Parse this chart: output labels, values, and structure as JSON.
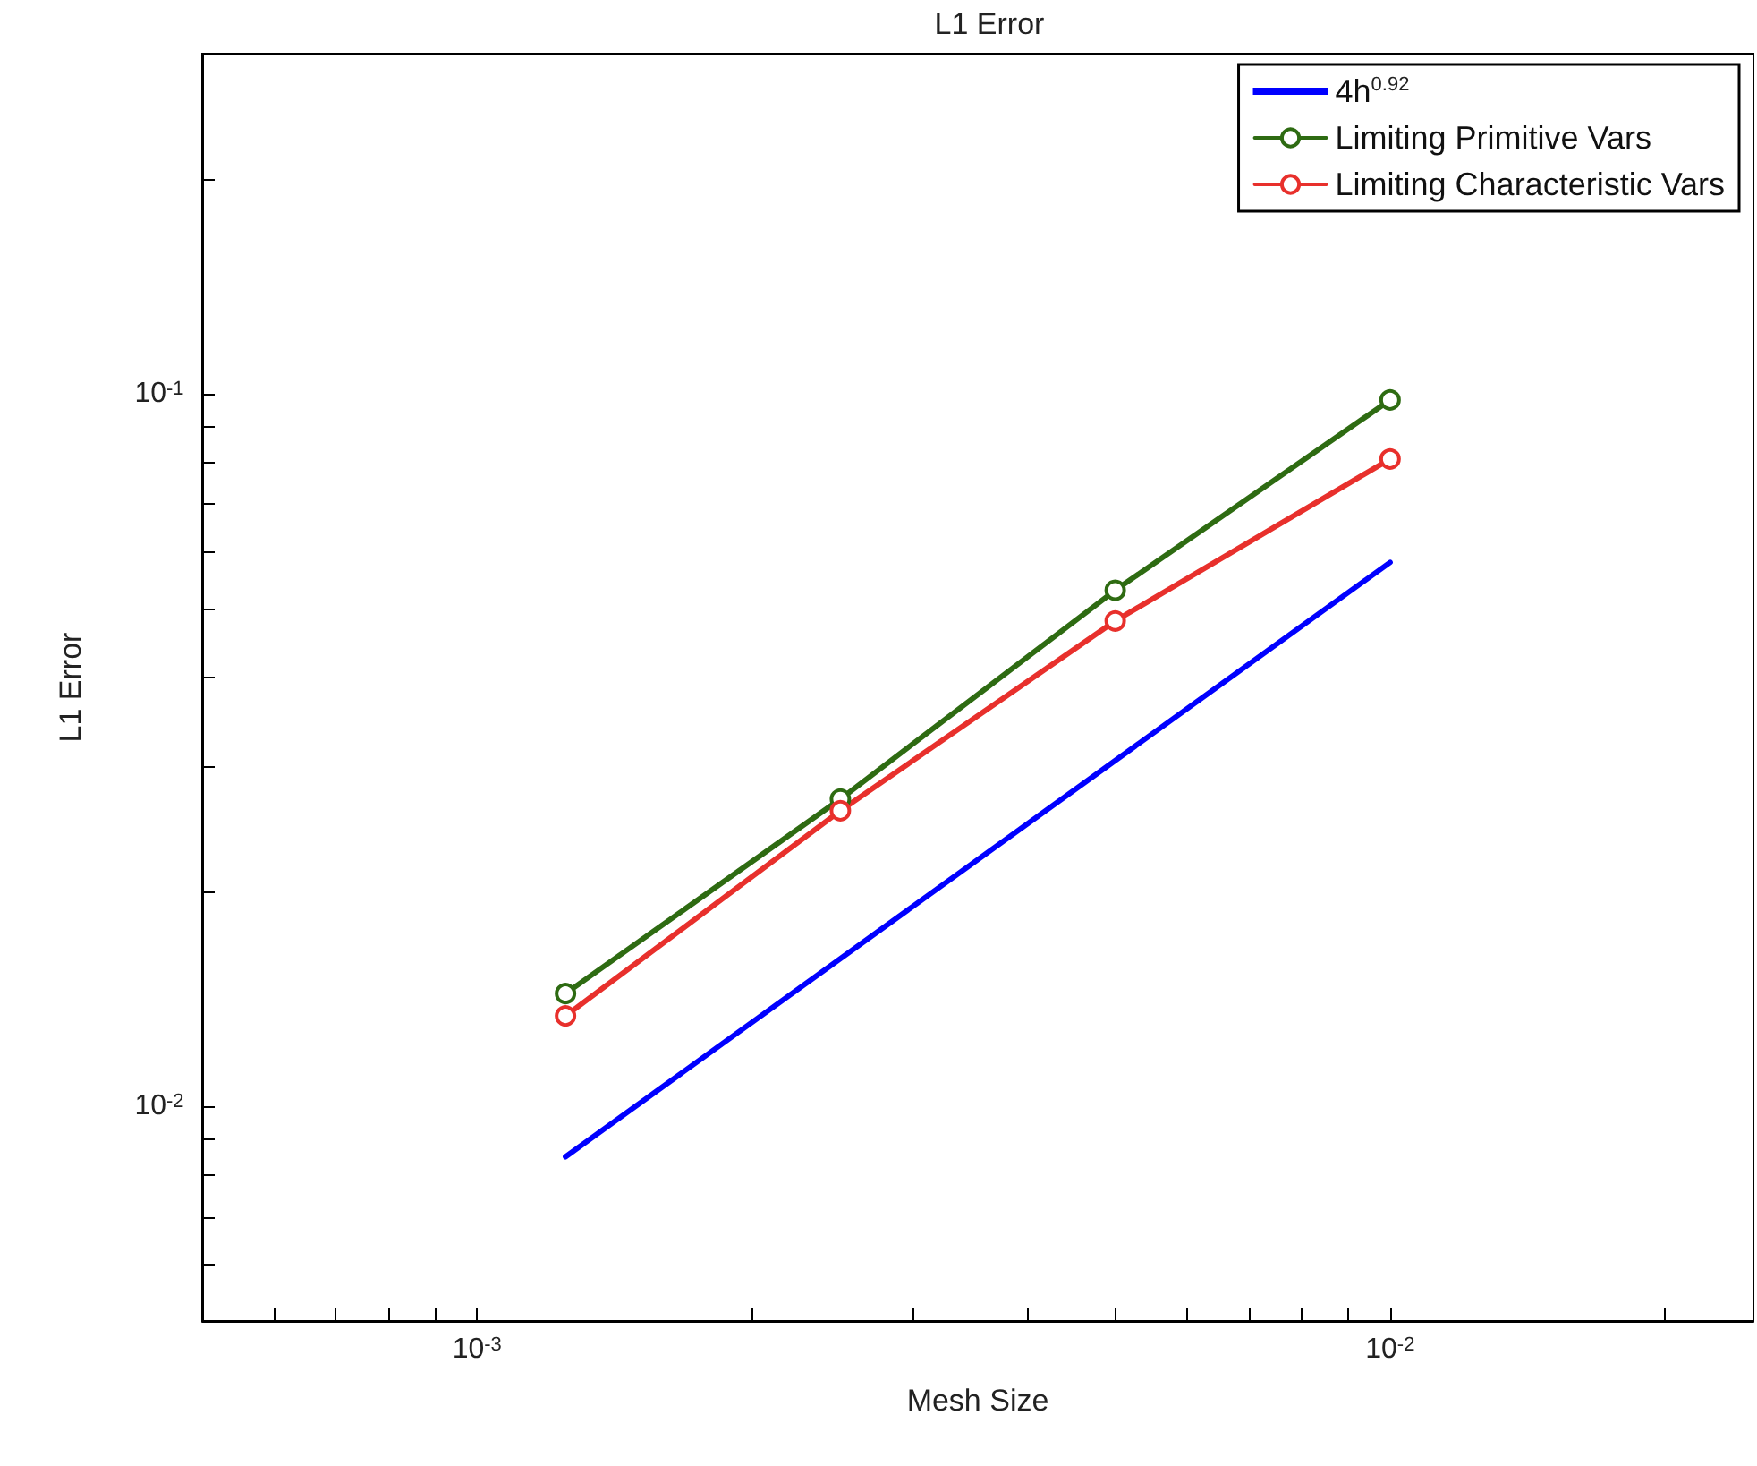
{
  "chart_data": {
    "type": "line",
    "title": "L1 Error",
    "xlabel": "Mesh Size",
    "ylabel": "L1 Error",
    "log": "xy",
    "grid": false,
    "legend": "top right",
    "line_style": "solid",
    "xlim": [
      0.0005,
      0.025
    ],
    "xticks": [
      {
        "value": 0.0006,
        "label": null
      },
      {
        "value": 0.0007,
        "label": null
      },
      {
        "value": 0.0008,
        "label": null
      },
      {
        "value": 0.0009,
        "label": null
      },
      {
        "value": 0.001,
        "label": "10$^{-3}$"
      },
      {
        "value": 0.002,
        "label": null
      },
      {
        "value": 0.003,
        "label": null
      },
      {
        "value": 0.004,
        "label": null
      },
      {
        "value": 0.005,
        "label": null
      },
      {
        "value": 0.006,
        "label": null
      },
      {
        "value": 0.007,
        "label": null
      },
      {
        "value": 0.008,
        "label": null
      },
      {
        "value": 0.009,
        "label": null
      },
      {
        "value": 0.01,
        "label": "10$^{-2}$"
      },
      {
        "value": 0.02,
        "label": null
      }
    ],
    "ylim": [
      0.005,
      0.3
    ],
    "yticks": [
      {
        "value": 0.006,
        "label": null
      },
      {
        "value": 0.007,
        "label": null
      },
      {
        "value": 0.008,
        "label": null
      },
      {
        "value": 0.009,
        "label": null
      },
      {
        "value": 0.01,
        "label": "10$^{-2}$"
      },
      {
        "value": 0.02,
        "label": null
      },
      {
        "value": 0.03,
        "label": null
      },
      {
        "value": 0.04,
        "label": null
      },
      {
        "value": 0.05,
        "label": null
      },
      {
        "value": 0.06,
        "label": null
      },
      {
        "value": 0.07,
        "label": null
      },
      {
        "value": 0.08,
        "label": null
      },
      {
        "value": 0.09,
        "label": null
      },
      {
        "value": 0.1,
        "label": "10$^{-1}$"
      },
      {
        "value": 0.2,
        "label": null
      }
    ],
    "series": [
      {
        "name": "4h$^{0.92}$",
        "color": "#0000ff",
        "marker": "none",
        "x": [
          0.00125,
          0.01
        ],
        "values": [
          0.0085,
          0.058
        ]
      },
      {
        "name": "Limiting Primitive Vars",
        "color": "#2e6b12",
        "marker": "circle",
        "x": [
          0.00125,
          0.0025,
          0.005,
          0.01
        ],
        "values": [
          0.0144,
          0.027,
          0.053,
          0.098
        ]
      },
      {
        "name": "Limiting Characteristic Vars",
        "color": "#e8302c",
        "marker": "circle",
        "x": [
          0.00125,
          0.0025,
          0.005,
          0.01
        ],
        "values": [
          0.0134,
          0.026,
          0.048,
          0.081
        ]
      }
    ]
  }
}
